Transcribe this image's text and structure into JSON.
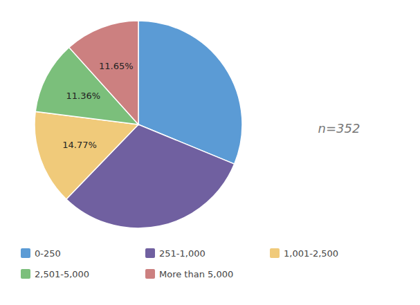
{
  "chart_data": {
    "type": "pie",
    "categories": [
      "0-250",
      "251-1,000",
      "1,001-2,500",
      "2,501-5,000",
      "More than 5,000"
    ],
    "values": [
      31.22,
      31.0,
      14.77,
      11.36,
      11.65
    ],
    "value_labels": [
      null,
      null,
      "14.77%",
      "11.36%",
      "11.65%"
    ],
    "colors": [
      "#5b9bd5",
      "#7060a0",
      "#f0ca7a",
      "#7bbf7b",
      "#cc8080"
    ],
    "data_labels": true,
    "annotations": [
      "n=352"
    ],
    "legend": "bottom"
  }
}
